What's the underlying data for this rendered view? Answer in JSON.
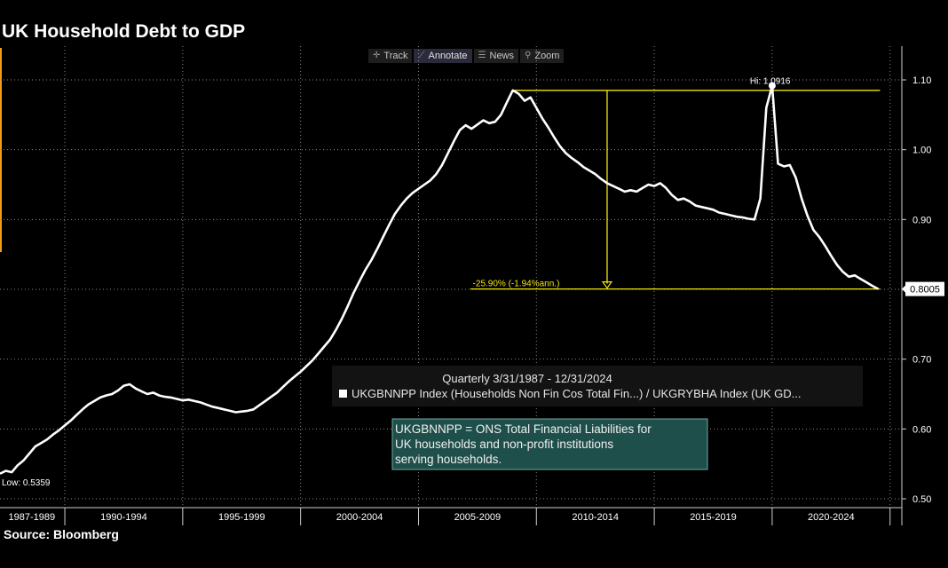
{
  "title": "UK Household Debt to GDP",
  "source": "Source: Bloomberg",
  "toolbar": {
    "items": [
      {
        "label": "Track",
        "icon": "crosshair-icon"
      },
      {
        "label": "Annotate",
        "icon": "pencil-icon"
      },
      {
        "label": "News",
        "icon": "news-icon"
      },
      {
        "label": "Zoom",
        "icon": "magnifier-icon"
      }
    ]
  },
  "colors": {
    "background": "#000000",
    "line": "#ffffff",
    "annotation": "#f0e60a",
    "info_box_bg": "#1f4f4a",
    "accent": "#f39c12"
  },
  "chart_data": {
    "type": "line",
    "title": "UK Household Debt to GDP",
    "ylim": [
      0.5,
      1.12
    ],
    "yticks": [
      "1.10",
      "1.00",
      "0.90",
      "0.80",
      "0.70",
      "0.60",
      "0.50"
    ],
    "xlim": [
      1987.25,
      2025.5
    ],
    "x_tick_labels": [
      "1987-1989",
      "1990-1994",
      "1995-1999",
      "2000-2004",
      "2005-2009",
      "2010-2014",
      "2015-2019",
      "2020-2024"
    ],
    "grid": true,
    "series": [
      {
        "frequency": "Quarterly",
        "points": [
          [
            1987.25,
            0.536
          ],
          [
            1987.5,
            0.54
          ],
          [
            1987.75,
            0.538
          ],
          [
            1988.0,
            0.548
          ],
          [
            1988.25,
            0.555
          ],
          [
            1988.5,
            0.565
          ],
          [
            1988.75,
            0.575
          ],
          [
            1989.0,
            0.58
          ],
          [
            1989.25,
            0.585
          ],
          [
            1989.5,
            0.592
          ],
          [
            1989.75,
            0.598
          ],
          [
            1990.0,
            0.605
          ],
          [
            1990.25,
            0.612
          ],
          [
            1990.5,
            0.62
          ],
          [
            1990.75,
            0.628
          ],
          [
            1991.0,
            0.635
          ],
          [
            1991.25,
            0.64
          ],
          [
            1991.5,
            0.645
          ],
          [
            1991.75,
            0.648
          ],
          [
            1992.0,
            0.65
          ],
          [
            1992.25,
            0.655
          ],
          [
            1992.5,
            0.662
          ],
          [
            1992.75,
            0.664
          ],
          [
            1993.0,
            0.658
          ],
          [
            1993.25,
            0.654
          ],
          [
            1993.5,
            0.65
          ],
          [
            1993.75,
            0.652
          ],
          [
            1994.0,
            0.648
          ],
          [
            1994.25,
            0.646
          ],
          [
            1994.5,
            0.645
          ],
          [
            1994.75,
            0.643
          ],
          [
            1995.0,
            0.641
          ],
          [
            1995.25,
            0.642
          ],
          [
            1995.5,
            0.64
          ],
          [
            1995.75,
            0.638
          ],
          [
            1996.0,
            0.635
          ],
          [
            1996.25,
            0.632
          ],
          [
            1996.5,
            0.63
          ],
          [
            1996.75,
            0.628
          ],
          [
            1997.0,
            0.626
          ],
          [
            1997.25,
            0.624
          ],
          [
            1997.5,
            0.625
          ],
          [
            1997.75,
            0.626
          ],
          [
            1998.0,
            0.628
          ],
          [
            1998.25,
            0.634
          ],
          [
            1998.5,
            0.64
          ],
          [
            1998.75,
            0.646
          ],
          [
            1999.0,
            0.652
          ],
          [
            1999.25,
            0.66
          ],
          [
            1999.5,
            0.668
          ],
          [
            1999.75,
            0.675
          ],
          [
            2000.0,
            0.682
          ],
          [
            2000.25,
            0.69
          ],
          [
            2000.5,
            0.698
          ],
          [
            2000.75,
            0.708
          ],
          [
            2001.0,
            0.718
          ],
          [
            2001.25,
            0.728
          ],
          [
            2001.5,
            0.742
          ],
          [
            2001.75,
            0.758
          ],
          [
            2002.0,
            0.776
          ],
          [
            2002.25,
            0.795
          ],
          [
            2002.5,
            0.812
          ],
          [
            2002.75,
            0.828
          ],
          [
            2003.0,
            0.842
          ],
          [
            2003.25,
            0.858
          ],
          [
            2003.5,
            0.875
          ],
          [
            2003.75,
            0.892
          ],
          [
            2004.0,
            0.908
          ],
          [
            2004.25,
            0.92
          ],
          [
            2004.5,
            0.93
          ],
          [
            2004.75,
            0.938
          ],
          [
            2005.0,
            0.944
          ],
          [
            2005.25,
            0.95
          ],
          [
            2005.5,
            0.956
          ],
          [
            2005.75,
            0.965
          ],
          [
            2006.0,
            0.978
          ],
          [
            2006.25,
            0.995
          ],
          [
            2006.5,
            1.012
          ],
          [
            2006.75,
            1.028
          ],
          [
            2007.0,
            1.035
          ],
          [
            2007.25,
            1.03
          ],
          [
            2007.5,
            1.036
          ],
          [
            2007.75,
            1.042
          ],
          [
            2008.0,
            1.038
          ],
          [
            2008.25,
            1.04
          ],
          [
            2008.5,
            1.05
          ],
          [
            2008.75,
            1.068
          ],
          [
            2009.0,
            1.085
          ],
          [
            2009.25,
            1.08
          ],
          [
            2009.5,
            1.07
          ],
          [
            2009.75,
            1.075
          ],
          [
            2010.0,
            1.06
          ],
          [
            2010.25,
            1.045
          ],
          [
            2010.5,
            1.032
          ],
          [
            2010.75,
            1.018
          ],
          [
            2011.0,
            1.005
          ],
          [
            2011.25,
            0.995
          ],
          [
            2011.5,
            0.988
          ],
          [
            2011.75,
            0.982
          ],
          [
            2012.0,
            0.975
          ],
          [
            2012.25,
            0.97
          ],
          [
            2012.5,
            0.965
          ],
          [
            2012.75,
            0.958
          ],
          [
            2013.0,
            0.952
          ],
          [
            2013.25,
            0.948
          ],
          [
            2013.5,
            0.944
          ],
          [
            2013.75,
            0.94
          ],
          [
            2014.0,
            0.942
          ],
          [
            2014.25,
            0.94
          ],
          [
            2014.5,
            0.945
          ],
          [
            2014.75,
            0.95
          ],
          [
            2015.0,
            0.948
          ],
          [
            2015.25,
            0.952
          ],
          [
            2015.5,
            0.945
          ],
          [
            2015.75,
            0.935
          ],
          [
            2016.0,
            0.928
          ],
          [
            2016.25,
            0.93
          ],
          [
            2016.5,
            0.926
          ],
          [
            2016.75,
            0.92
          ],
          [
            2017.0,
            0.918
          ],
          [
            2017.25,
            0.916
          ],
          [
            2017.5,
            0.914
          ],
          [
            2017.75,
            0.91
          ],
          [
            2018.0,
            0.908
          ],
          [
            2018.25,
            0.906
          ],
          [
            2018.5,
            0.904
          ],
          [
            2018.75,
            0.903
          ],
          [
            2019.0,
            0.901
          ],
          [
            2019.25,
            0.9
          ],
          [
            2019.5,
            0.93
          ],
          [
            2019.75,
            1.06
          ],
          [
            2020.0,
            1.0916
          ],
          [
            2020.25,
            0.98
          ],
          [
            2020.5,
            0.976
          ],
          [
            2020.75,
            0.978
          ],
          [
            2021.0,
            0.96
          ],
          [
            2021.25,
            0.93
          ],
          [
            2021.5,
            0.905
          ],
          [
            2021.75,
            0.885
          ],
          [
            2022.0,
            0.875
          ],
          [
            2022.25,
            0.862
          ],
          [
            2022.5,
            0.848
          ],
          [
            2022.75,
            0.835
          ],
          [
            2023.0,
            0.825
          ],
          [
            2023.25,
            0.818
          ],
          [
            2023.5,
            0.82
          ],
          [
            2023.75,
            0.815
          ],
          [
            2024.0,
            0.81
          ],
          [
            2024.25,
            0.805
          ],
          [
            2024.5,
            0.8005
          ]
        ]
      }
    ],
    "annotations": {
      "high_label": "Hi: 1.0916",
      "high_value": 1.0916,
      "low_label": "Low: 0.5359",
      "low_value": 0.5359,
      "last_value_label": "0.8005",
      "last_value": 0.8005,
      "change_label": "-25.90% (-1.94%ann.)",
      "ref_line_high": 1.085,
      "ref_line_low": 0.8005,
      "ref_x_start": 2009.0,
      "ref_x_end": 2024.5,
      "arrow_x": 2013.0
    },
    "legend": {
      "period": "Quarterly 3/31/1987 - 12/31/2024",
      "series_label": "UKGBNNPP Index (Households Non Fin Cos Total Fin...) / UKGRYBHA Index (UK GD..."
    },
    "info_box": "UKGBNNPP = ONS Total Financial Liabilities for UK households and non-profit institutions serving households."
  }
}
